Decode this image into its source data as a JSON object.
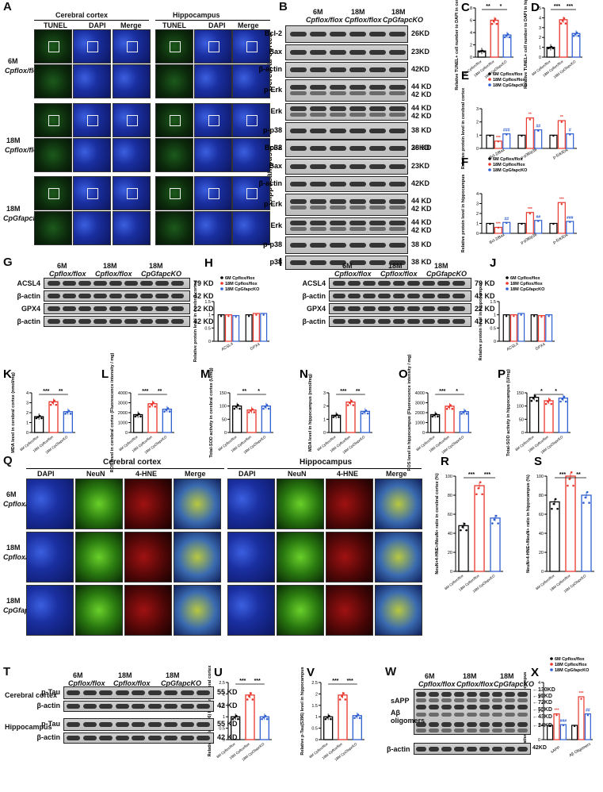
{
  "panel_letters": [
    "A",
    "B",
    "C",
    "D",
    "E",
    "F",
    "G",
    "H",
    "I",
    "J",
    "K",
    "L",
    "M",
    "N",
    "O",
    "P",
    "Q",
    "R",
    "S",
    "T",
    "U",
    "V",
    "W",
    "X"
  ],
  "groups": [
    "6M Cp flox/flox",
    "18M Cp flox/flox",
    "18M Cp Gfap cKO"
  ],
  "group_top": [
    "6M",
    "18M",
    "18M"
  ],
  "group_bottom": [
    "Cpflox/flox",
    "Cpflox/flox",
    "CpGfapcKO"
  ],
  "panelA": {
    "region_left": "Cerebral cortex",
    "region_right": "Hippocampus",
    "channels": [
      "TUNEL",
      "DAPI",
      "Merge",
      "TUNEL",
      "DAPI",
      "Merge"
    ],
    "rows": [
      {
        "top": "6M",
        "bottom": "Cpflox/flox"
      },
      {
        "top": "18M",
        "bottom": "Cpflox/flox"
      },
      {
        "top": "18M",
        "bottom": "CpGfapcKO"
      }
    ]
  },
  "panelB": {
    "cortex_label": "Cerebral cortex",
    "hippo_label": "Hippocampus",
    "cortex_rows": [
      {
        "name": "Bcl-2",
        "kd": "26KD"
      },
      {
        "name": "Bax",
        "kd": "23KD"
      },
      {
        "name": "β-actin",
        "kd": "42KD"
      },
      {
        "name": "p-Erk",
        "kd": "44 KD\n42 KD"
      },
      {
        "name": "Erk",
        "kd": "44 KD\n42 KD"
      },
      {
        "name": "p-p38",
        "kd": "38 KD"
      },
      {
        "name": "p38",
        "kd": "38 KD"
      }
    ],
    "hippo_rows": [
      {
        "name": "Bcl-2",
        "kd": "26KD"
      },
      {
        "name": "Bax",
        "kd": "23KD"
      },
      {
        "name": "β-actin",
        "kd": "42KD"
      },
      {
        "name": "p-Erk",
        "kd": "44 KD\n42 KD"
      },
      {
        "name": "Erk",
        "kd": "44 KD\n42 KD"
      },
      {
        "name": "p-p38",
        "kd": "38 KD"
      },
      {
        "name": "p38",
        "kd": "38 KD"
      }
    ]
  },
  "panelG": {
    "rows": [
      {
        "name": "ACSL4",
        "kd": "79 KD"
      },
      {
        "name": "β-actin",
        "kd": "42 KD"
      },
      {
        "name": "GPX4",
        "kd": "22 KD"
      },
      {
        "name": "β-actin",
        "kd": "42 KD"
      }
    ]
  },
  "panelI": {
    "rows": [
      {
        "name": "ACSL4",
        "kd": "79 KD"
      },
      {
        "name": "β-actin",
        "kd": "42 KD"
      },
      {
        "name": "GPX4",
        "kd": "22 KD"
      },
      {
        "name": "β-actin",
        "kd": "42 KD"
      }
    ]
  },
  "panelQ": {
    "region_left": "Cerebral cortex",
    "region_right": "Hippocampus",
    "channels": [
      "DAPI",
      "NeuN",
      "4-HNE",
      "Merge",
      "DAPI",
      "NeuN",
      "4-HNE",
      "Merge"
    ]
  },
  "panelT": {
    "rows": [
      {
        "region": "Cerebral cortex",
        "name": "p-Tau",
        "kd": "55 KD"
      },
      {
        "region": "",
        "name": "β-actin",
        "kd": "42 KD"
      },
      {
        "region": "Hippocampus",
        "name": "p-Tau",
        "kd": "55 KD"
      },
      {
        "region": "",
        "name": "β-actin",
        "kd": "42 KD"
      }
    ]
  },
  "panelW": {
    "labels": [
      "sAPP",
      "Aβ oligomers",
      "β-actin"
    ],
    "kd": [
      "130KD",
      "95KD",
      "72KD",
      "55KD",
      "43KD",
      "34KD",
      "42KD"
    ]
  },
  "legend": {
    "items": [
      "6M Cpflox/flox",
      "18M Cpflox/flox",
      "18M CpGfapcKO"
    ],
    "colors": [
      "#000000",
      "#e8362c",
      "#2f5fd0"
    ]
  },
  "chart_data": [
    {
      "id": "C",
      "type": "bar",
      "ylabel": "Relative TUNEL+ cell number to DAPI in cerebral cortex",
      "ylim": [
        0,
        8
      ],
      "yticks": [
        0,
        2,
        4,
        6,
        8
      ],
      "categories": [
        "6M Cpflox/flox",
        "18M Cpflox/flox",
        "18M CpGfapcKO"
      ],
      "values": [
        1,
        6,
        3.6
      ],
      "sig": [
        "**",
        "*"
      ]
    },
    {
      "id": "D",
      "type": "bar",
      "ylabel": "Relative TUNEL+ cell number to DAPI in hippocampus",
      "ylim": [
        0,
        5
      ],
      "yticks": [
        0,
        1,
        2,
        3,
        4,
        5
      ],
      "categories": [
        "6M Cpflox/flox",
        "18M Cpflox/flox",
        "18M CpGfapcKO"
      ],
      "values": [
        1,
        3.8,
        2.4
      ],
      "sig": [
        "***",
        "***"
      ]
    },
    {
      "id": "E",
      "type": "bar",
      "ylabel": "Relative protein level in cerebral cortex",
      "ylim": [
        0,
        3
      ],
      "yticks": [
        0,
        1,
        2,
        3
      ],
      "categories": [
        "Bcl-2/Bax",
        "p-p38/p38",
        "p-Erk/Erk"
      ],
      "series": [
        {
          "name": "6M Cpflox/flox",
          "values": [
            1,
            1,
            1
          ]
        },
        {
          "name": "18M Cpflox/flox",
          "values": [
            0.55,
            2.3,
            2.1
          ]
        },
        {
          "name": "18M CpGfapcKO",
          "values": [
            1.1,
            1.4,
            1.1
          ]
        }
      ],
      "sig": [
        "***",
        "###",
        "**",
        "##",
        "**",
        "#"
      ]
    },
    {
      "id": "F",
      "type": "bar",
      "ylabel": "Relative protein level in hippocampus",
      "ylim": [
        0,
        4
      ],
      "yticks": [
        0,
        1,
        2,
        3,
        4
      ],
      "categories": [
        "Bcl-2/Bax",
        "p-p38/p38",
        "p-Erk/Erk"
      ],
      "series": [
        {
          "name": "6M Cpflox/flox",
          "values": [
            1,
            1,
            1
          ]
        },
        {
          "name": "18M Cpflox/flox",
          "values": [
            0.6,
            2.1,
            3.1
          ]
        },
        {
          "name": "18M CpGfapcKO",
          "values": [
            1.1,
            1.3,
            1.2
          ]
        }
      ],
      "sig": [
        "***",
        "##",
        "***",
        "##",
        "***",
        "###"
      ]
    },
    {
      "id": "H",
      "type": "bar",
      "ylabel": "Relative protein level in cerebral cortex",
      "ylim": [
        0,
        1.5
      ],
      "yticks": [
        0.0,
        0.5,
        1.0,
        1.5
      ],
      "categories": [
        "ACSL4",
        "GPX4"
      ],
      "series": [
        {
          "name": "6M Cpflox/flox",
          "values": [
            1.0,
            1.0
          ]
        },
        {
          "name": "18M Cpflox/flox",
          "values": [
            1.0,
            1.05
          ]
        },
        {
          "name": "18M CpGfapcKO",
          "values": [
            0.97,
            1.05
          ]
        }
      ]
    },
    {
      "id": "J",
      "type": "bar",
      "ylabel": "Relative protein level in hippocampus",
      "ylim": [
        0,
        1.5
      ],
      "yticks": [
        0.0,
        0.5,
        1.0,
        1.5
      ],
      "categories": [
        "ACSL4",
        "GPX4"
      ],
      "series": [
        {
          "name": "6M Cpflox/flox",
          "values": [
            1.0,
            1.0
          ]
        },
        {
          "name": "18M Cpflox/flox",
          "values": [
            1.0,
            0.97
          ]
        },
        {
          "name": "18M CpGfapcKO",
          "values": [
            1.05,
            1.0
          ]
        }
      ]
    },
    {
      "id": "K",
      "type": "bar",
      "ylabel": "MDA level in cerebral cortex (nmol/mg)",
      "ylim": [
        0,
        4
      ],
      "yticks": [
        0,
        1,
        2,
        3,
        4
      ],
      "categories": [
        "6M Cpflox/flox",
        "18M Cpflox/flox",
        "18M CpGfapcKO"
      ],
      "values": [
        1.6,
        3.1,
        2.1
      ],
      "sig": [
        "***",
        "**"
      ]
    },
    {
      "id": "L",
      "type": "bar",
      "ylabel": "ROS level in cerebral cortex (Fluorescence intensity / mg)",
      "ylim": [
        0,
        4000
      ],
      "yticks": [
        0,
        1000,
        2000,
        3000,
        4000
      ],
      "categories": [
        "6M Cpflox/flox",
        "18M Cpflox/flox",
        "18M CpGfapcKO"
      ],
      "values": [
        1800,
        2900,
        2350
      ],
      "sig": [
        "***",
        "**"
      ]
    },
    {
      "id": "M",
      "type": "bar",
      "ylabel": "Total-SOD activity in cerebral cortex (U/mg)",
      "ylim": [
        0,
        150
      ],
      "yticks": [
        0,
        50,
        100,
        150
      ],
      "categories": [
        "6M Cpflox/flox",
        "18M Cpflox/flox",
        "18M CpGfapcKO"
      ],
      "values": [
        100,
        85,
        100
      ],
      "sig": [
        "**",
        "*"
      ]
    },
    {
      "id": "N",
      "type": "bar",
      "ylabel": "MDA level in hippocampus (nmol/mg)",
      "ylim": [
        0,
        3
      ],
      "yticks": [
        0,
        1,
        2,
        3
      ],
      "categories": [
        "6M Cpflox/flox",
        "18M Cpflox/flox",
        "18M CpGfapcKO"
      ],
      "values": [
        1.3,
        2.3,
        1.6
      ],
      "sig": [
        "***",
        "**"
      ]
    },
    {
      "id": "O",
      "type": "bar",
      "ylabel": "ROS level in hippocampus (Fluorescence intensity / mg)",
      "ylim": [
        0,
        4000
      ],
      "yticks": [
        0,
        1000,
        2000,
        3000,
        4000
      ],
      "categories": [
        "6M Cpflox/flox",
        "18M Cpflox/flox",
        "18M CpGfapcKO"
      ],
      "values": [
        1800,
        2650,
        2100
      ],
      "sig": [
        "***",
        "*"
      ]
    },
    {
      "id": "P",
      "type": "bar",
      "ylabel": "Total-SOD activity in hippocampus (U/mg)",
      "ylim": [
        0,
        150
      ],
      "yticks": [
        0,
        50,
        100,
        150
      ],
      "categories": [
        "6M Cpflox/flox",
        "18M Cpflox/flox",
        "18M CpGfapcKO"
      ],
      "values": [
        133,
        120,
        130
      ],
      "sig": [
        "*",
        "*"
      ]
    },
    {
      "id": "R",
      "type": "bar",
      "ylabel": "NeuN+4-HNE+/NeuN+ ratio in cerebral cortex (%)",
      "ylim": [
        0,
        100
      ],
      "yticks": [
        0,
        20,
        40,
        60,
        80,
        100
      ],
      "categories": [
        "6M Cpflox/flox",
        "18M Cpflox/flox",
        "18M CpGfapcKO"
      ],
      "values": [
        48,
        90,
        56
      ],
      "sig": [
        "***",
        "***"
      ]
    },
    {
      "id": "S",
      "type": "bar",
      "ylabel": "NeuN+4-HNE+/NeuN+ ratio in hippocampus (%)",
      "ylim": [
        0,
        100
      ],
      "yticks": [
        0,
        20,
        40,
        60,
        80,
        100
      ],
      "categories": [
        "6M Cpflox/flox",
        "18M Cpflox/flox",
        "18M CpGfapcKO"
      ],
      "values": [
        73,
        100,
        80
      ],
      "sig": [
        "***",
        "**"
      ]
    },
    {
      "id": "U",
      "type": "bar",
      "ylabel": "Relative p-Tau(S396) level in cerebral cortex",
      "ylim": [
        0,
        2.5
      ],
      "yticks": [
        0.0,
        0.5,
        1.0,
        1.5,
        2.0,
        2.5
      ],
      "categories": [
        "6M Cpflox/flox",
        "18M Cpflox/flox",
        "18M CpGfapcKO"
      ],
      "values": [
        1.0,
        1.95,
        1.0
      ],
      "sig": [
        "***",
        "***"
      ]
    },
    {
      "id": "V",
      "type": "bar",
      "ylabel": "Relative p-Tau(S396) level in hippocampus",
      "ylim": [
        0,
        2.5
      ],
      "yticks": [
        0.0,
        0.5,
        1.0,
        1.5,
        2.0,
        2.5
      ],
      "categories": [
        "6M Cpflox/flox",
        "18M Cpflox/flox",
        "18M CpGfapcKO"
      ],
      "values": [
        1.0,
        1.95,
        1.05
      ],
      "sig": [
        "***",
        "***"
      ]
    },
    {
      "id": "X",
      "type": "bar",
      "ylabel": "Relative protein level in hippocampus",
      "ylim": [
        0,
        4
      ],
      "yticks": [
        0,
        1,
        2,
        3,
        4
      ],
      "categories": [
        "sAPP",
        "Aβ Oligomers"
      ],
      "series": [
        {
          "name": "6M Cpflox/flox",
          "values": [
            1.0,
            1.0
          ]
        },
        {
          "name": "18M Cpflox/flox",
          "values": [
            1.8,
            3.0
          ]
        },
        {
          "name": "18M CpGfapcKO",
          "values": [
            1.05,
            1.8
          ]
        }
      ],
      "sig": [
        "***",
        "###",
        "***",
        "##"
      ]
    }
  ]
}
